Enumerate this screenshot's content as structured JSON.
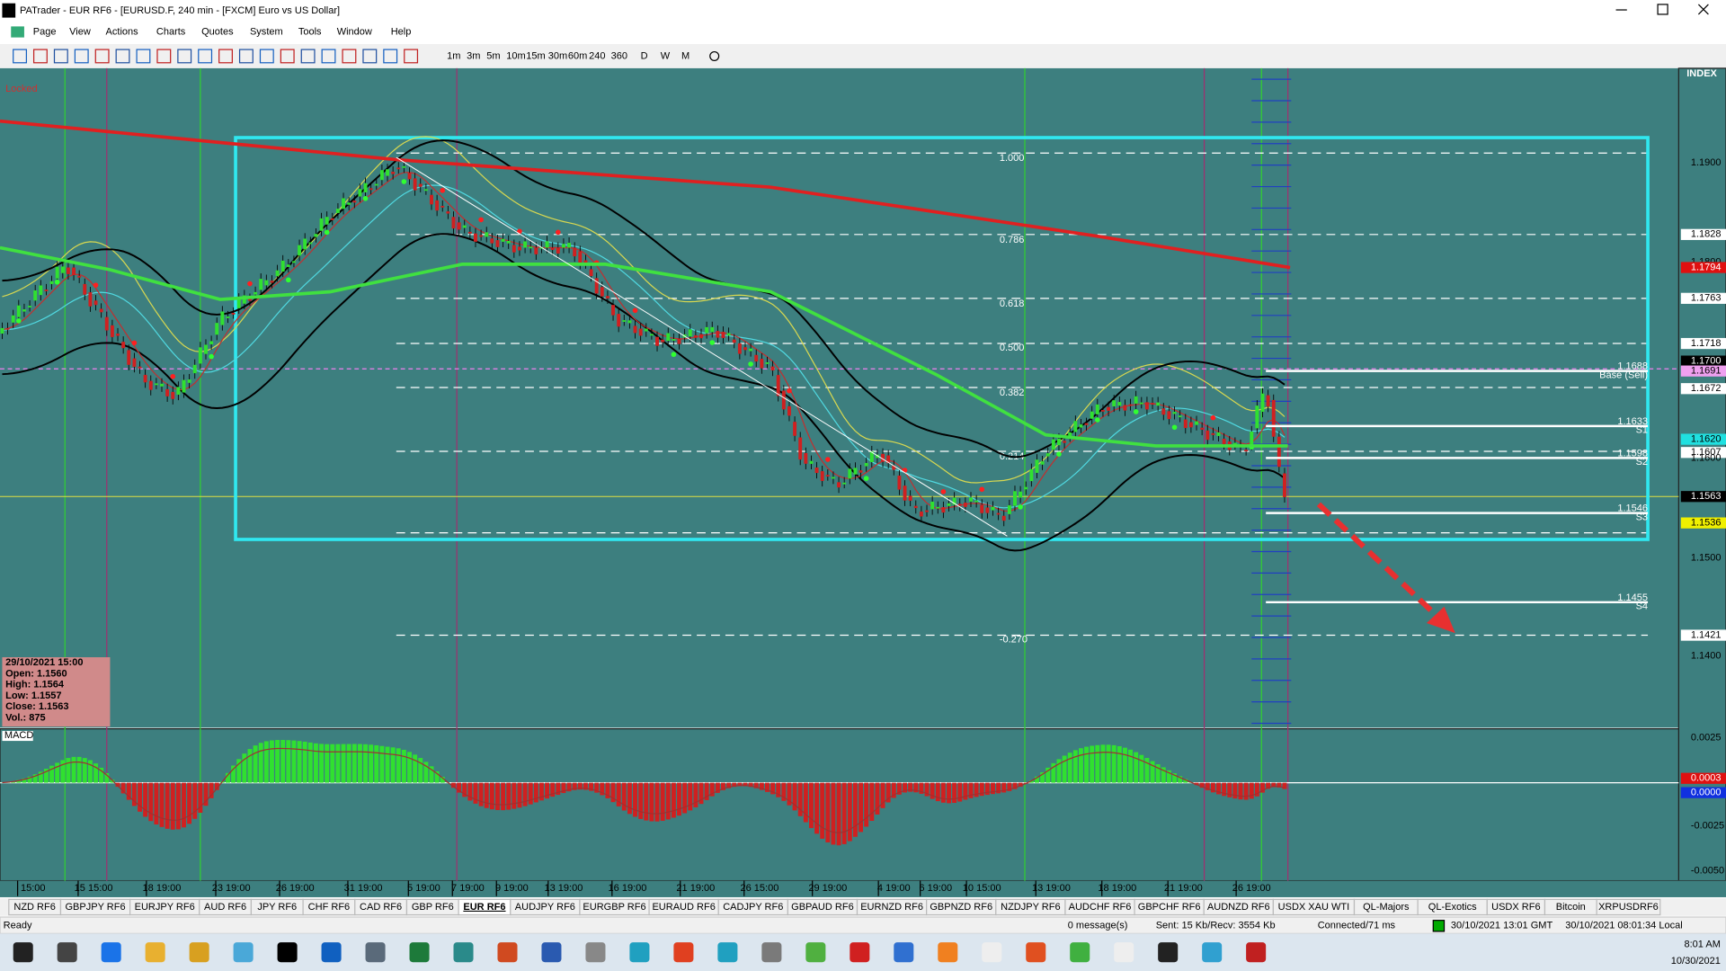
{
  "window": {
    "title": "PATrader - EUR RF6 - [EURUSD.F, 240 min - [FXCM] Euro vs US Dollar]"
  },
  "menu": [
    "Page",
    "View",
    "Actions",
    "Charts",
    "Quotes",
    "System",
    "Tools",
    "Window",
    "Help"
  ],
  "timeframes": [
    "1m",
    "3m",
    "5m",
    "10m",
    "15m",
    "30m",
    "60m",
    "240",
    "360",
    "D",
    "W",
    "M"
  ],
  "chart": {
    "status": "Locked",
    "index_label": "INDEX",
    "price_axis": [
      {
        "label": "1.1900"
      },
      {
        "label": "1.1828",
        "color": "#ffffff"
      },
      {
        "label": "1.1800"
      },
      {
        "label": "1.1794",
        "color": "#e01010"
      },
      {
        "label": "1.1763",
        "color": "#ffffff"
      },
      {
        "label": "1.1718",
        "color": "#ffffff"
      },
      {
        "label": "1.1700",
        "color": "#000000"
      },
      {
        "label": "1.1691",
        "color": "#f0a0f0"
      },
      {
        "label": "1.1672",
        "color": "#ffffff"
      },
      {
        "label": "1.1620",
        "color": "#20e0e0"
      },
      {
        "label": "1.1607",
        "color": "#ffffff"
      },
      {
        "label": "1.1600"
      },
      {
        "label": "1.1563",
        "color": "#000000"
      },
      {
        "label": "1.1536",
        "color": "#f0f000"
      },
      {
        "label": "1.1500"
      },
      {
        "label": "1.1421",
        "color": "#ffffff"
      },
      {
        "label": "1.1400"
      }
    ],
    "fib_levels": [
      "1.000",
      "0.786",
      "0.618",
      "0.500",
      "0.382",
      "0.214",
      "-0.270"
    ],
    "pivots": [
      {
        "price": "1.1688",
        "name": "Base (Sell)"
      },
      {
        "price": "1.1633",
        "name": "S1"
      },
      {
        "price": "1.1598",
        "name": "S2"
      },
      {
        "price": "1.1546",
        "name": "S3"
      },
      {
        "price": "1.1455",
        "name": "S4"
      }
    ],
    "ohlc": [
      "29/10/2021 15:00",
      "Open: 1.1560",
      "High: 1.1564",
      "Low: 1.1557",
      "Close: 1.1563",
      "Vol.: 875"
    ],
    "dates": [
      "15:00",
      "15 15:00",
      "18 19:00",
      "23 19:00",
      "26 19:00",
      "31 19:00",
      "5 19:00",
      "7 19:00",
      "9 19:00",
      "13 19:00",
      "16 19:00",
      "21 19:00",
      "26 15:00",
      "29 19:00",
      "4 19:00",
      "6 19:00",
      "10 15:00",
      "13 19:00",
      "18 19:00",
      "21 19:00",
      "26 19:00"
    ]
  },
  "macd": {
    "label": "MACD",
    "axis": [
      {
        "label": "0.0025"
      },
      {
        "label": "0.0003",
        "color": "#e01010"
      },
      {
        "label": "0.0000",
        "color": "#1030e0"
      },
      {
        "label": "-0.0025"
      },
      {
        "label": "-0.0050"
      }
    ]
  },
  "tabs": [
    "NZD RF6",
    "GBPJPY RF6",
    "EURJPY RF6",
    "AUD RF6",
    "JPY RF6",
    "CHF RF6",
    "CAD RF6",
    "GBP RF6",
    "EUR RF6",
    "AUDJPY RF6",
    "EURGBP RF6",
    "EURAUD RF6",
    "CADJPY RF6",
    "GBPAUD RF6",
    "EURNZD RF6",
    "GBPNZD RF6",
    "NZDJPY RF6",
    "AUDCHF RF6",
    "GBPCHF RF6",
    "AUDNZD RF6",
    "USDX XAU WTI",
    "QL-Majors",
    "QL-Exotics",
    "USDX RF6",
    "Bitcoin",
    "XRPUSDRF6"
  ],
  "active_tab": "EUR RF6",
  "status_bar": {
    "ready": "Ready",
    "messages": "0 message(s)",
    "traffic": "Sent: 15 Kb/Recv: 3554 Kb",
    "connection": "Connected/71 ms",
    "gmt": "30/10/2021 13:01 GMT",
    "local": "30/10/2021 08:01:34 Local"
  },
  "taskbar": {
    "time": "8:01 AM",
    "date": "10/30/2021"
  }
}
